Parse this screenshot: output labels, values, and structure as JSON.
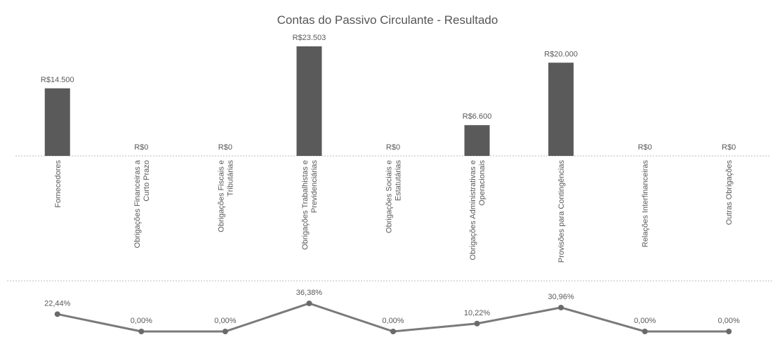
{
  "chart_data": [
    {
      "type": "bar",
      "title": "Contas do Passivo Circulante - Resultado",
      "categories": [
        "Fornecedores",
        "Obrigações Financeiras a Curto Prazo",
        "Obrigações Fiscais e Tributárias",
        "Obrigações Trabalhistas e Previdenciárias",
        "Obrigações Sociais e Estatutárias",
        "Obrigações Administrativas e Operacionais",
        "Provisões para Contingências",
        "Relações Interfinanceiras",
        "Outras Obrigações"
      ],
      "values": [
        14500,
        0,
        0,
        23503,
        0,
        6600,
        20000,
        0,
        0
      ],
      "value_labels": [
        "R$14.500",
        "R$0",
        "R$0",
        "R$23.503",
        "R$0",
        "R$6.600",
        "R$20.000",
        "R$0",
        "R$0"
      ],
      "color": "#5a5a5a"
    },
    {
      "type": "line",
      "values": [
        22.44,
        0,
        0,
        36.38,
        0,
        10.22,
        30.96,
        0,
        0
      ],
      "value_labels": [
        "22,44%",
        "0,00%",
        "0,00%",
        "36,38%",
        "0,00%",
        "10,22%",
        "30,96%",
        "0,00%",
        "0,00%"
      ],
      "color": "#7a7a7a"
    }
  ]
}
